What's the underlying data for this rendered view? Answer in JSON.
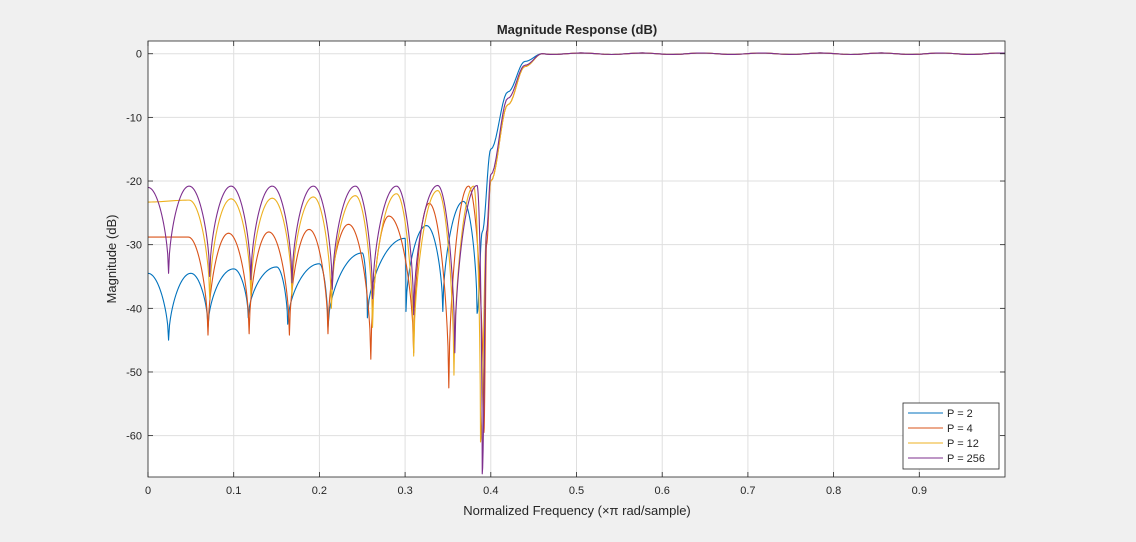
{
  "chart_data": {
    "type": "line",
    "title": "Magnitude Response (dB)",
    "xlabel": "Normalized  Frequency  (×π rad/sample)",
    "ylabel": "Magnitude (dB)",
    "xlim": [
      0,
      1
    ],
    "ylim": [
      -66.5,
      2
    ],
    "x_ticks": [
      0,
      0.1,
      0.2,
      0.3,
      0.4,
      0.5,
      0.6,
      0.7,
      0.8,
      0.9
    ],
    "x_tick_labels": [
      "0",
      "0.1",
      "0.2",
      "0.3",
      "0.4",
      "0.5",
      "0.6",
      "0.7",
      "0.8",
      "0.9"
    ],
    "y_ticks": [
      0,
      -10,
      -20,
      -30,
      -40,
      -50,
      -60
    ],
    "y_tick_labels": [
      "0",
      "-10",
      "-20",
      "-30",
      "-40",
      "-50",
      "-60"
    ],
    "grid": true,
    "legend_position": "bottom-right",
    "series": [
      {
        "name": "P = 2",
        "color": "#0072bd",
        "stopband": {
          "maxima": [
            [
              0,
              -34.5
            ],
            [
              0.05,
              -34.5
            ],
            [
              0.1,
              -33.8
            ],
            [
              0.15,
              -33.5
            ],
            [
              0.2,
              -33.0
            ],
            [
              0.25,
              -31.3
            ],
            [
              0.3,
              -29.0
            ],
            [
              0.325,
              -27.0
            ],
            [
              0.368,
              -23.2
            ]
          ],
          "nulls": [
            [
              0.024,
              -45
            ],
            [
              0.07,
              -43
            ],
            [
              0.117,
              -41.5
            ],
            [
              0.163,
              -42.5
            ],
            [
              0.21,
              -43
            ],
            [
              0.256,
              -41.5
            ],
            [
              0.301,
              -40.5
            ],
            [
              0.344,
              -40.5
            ],
            [
              0.384,
              -40.8
            ]
          ]
        },
        "transition": [
          [
            0.39,
            -28
          ],
          [
            0.4,
            -15
          ],
          [
            0.42,
            -6
          ],
          [
            0.44,
            -1.2
          ],
          [
            0.46,
            0
          ],
          [
            1.0,
            0
          ]
        ]
      },
      {
        "name": "P = 4",
        "color": "#d95319",
        "stopband": {
          "maxima": [
            [
              0,
              -28.8
            ],
            [
              0.047,
              -28.8
            ],
            [
              0.094,
              -28.2
            ],
            [
              0.141,
              -28.0
            ],
            [
              0.188,
              -27.6
            ],
            [
              0.234,
              -26.8
            ],
            [
              0.281,
              -25.5
            ],
            [
              0.328,
              -23.5
            ],
            [
              0.374,
              -20.8
            ]
          ],
          "nulls": [
            [
              0.07,
              -44.2
            ],
            [
              0.118,
              -44
            ],
            [
              0.165,
              -44.2
            ],
            [
              0.21,
              -44
            ],
            [
              0.26,
              -48
            ],
            [
              0.31,
              -47
            ],
            [
              0.351,
              -52.5
            ],
            [
              0.392,
              -59.5
            ]
          ]
        },
        "transition": [
          [
            0.395,
            -30
          ],
          [
            0.4,
            -20
          ],
          [
            0.42,
            -8
          ],
          [
            0.44,
            -2
          ],
          [
            0.46,
            0
          ],
          [
            1.0,
            0
          ]
        ]
      },
      {
        "name": "P = 12",
        "color": "#edb120",
        "stopband": {
          "maxima": [
            [
              0,
              -23.3
            ],
            [
              0.048,
              -23.0
            ],
            [
              0.097,
              -22.8
            ],
            [
              0.145,
              -22.7
            ],
            [
              0.193,
              -22.5
            ],
            [
              0.242,
              -22.3
            ],
            [
              0.29,
              -22.0
            ],
            [
              0.338,
              -21.5
            ],
            [
              0.38,
              -20.8
            ]
          ],
          "nulls": [
            [
              0.072,
              -38.5
            ],
            [
              0.12,
              -38
            ],
            [
              0.168,
              -38
            ],
            [
              0.214,
              -40
            ],
            [
              0.262,
              -43
            ],
            [
              0.31,
              -47.5
            ],
            [
              0.357,
              -50.5
            ],
            [
              0.388,
              -61
            ]
          ]
        },
        "transition": [
          [
            0.395,
            -28
          ],
          [
            0.4,
            -20
          ],
          [
            0.42,
            -8
          ],
          [
            0.44,
            -2
          ],
          [
            0.46,
            0
          ],
          [
            1.0,
            0
          ]
        ]
      },
      {
        "name": "P = 256",
        "color": "#7e2f8e",
        "stopband": {
          "maxima": [
            [
              0,
              -21.0
            ],
            [
              0.048,
              -20.8
            ],
            [
              0.097,
              -20.8
            ],
            [
              0.145,
              -20.8
            ],
            [
              0.193,
              -20.8
            ],
            [
              0.242,
              -20.8
            ],
            [
              0.29,
              -20.8
            ],
            [
              0.338,
              -20.7
            ],
            [
              0.384,
              -20.7
            ]
          ],
          "nulls": [
            [
              0.024,
              -34.5
            ],
            [
              0.072,
              -35
            ],
            [
              0.12,
              -35.5
            ],
            [
              0.168,
              -36
            ],
            [
              0.215,
              -37
            ],
            [
              0.262,
              -38.5
            ],
            [
              0.31,
              -41
            ],
            [
              0.358,
              -47
            ],
            [
              0.39,
              -66
            ]
          ]
        },
        "transition": [
          [
            0.395,
            -28
          ],
          [
            0.4,
            -19
          ],
          [
            0.42,
            -7
          ],
          [
            0.44,
            -1.8
          ],
          [
            0.46,
            0
          ],
          [
            1.0,
            0
          ]
        ]
      }
    ]
  }
}
